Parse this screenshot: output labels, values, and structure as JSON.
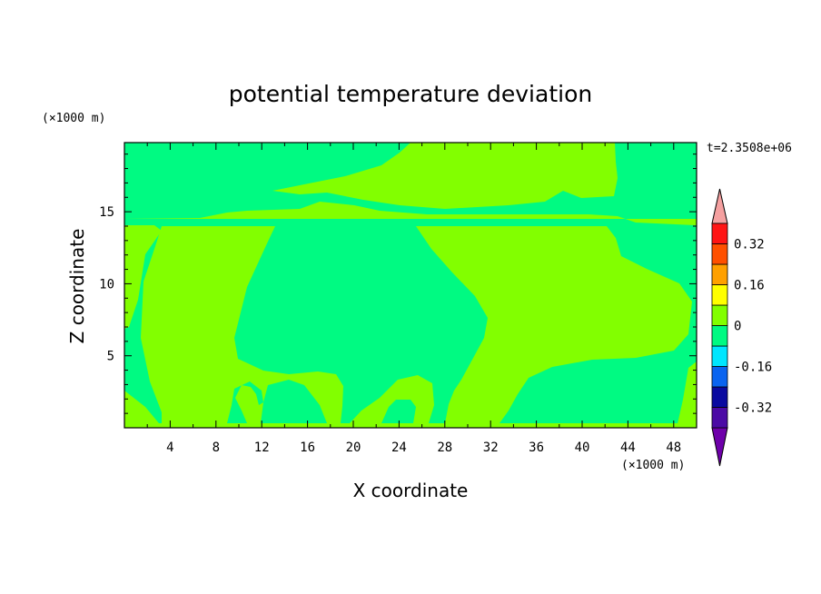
{
  "chart_data": {
    "type": "heatmap",
    "title": "potential temperature deviation",
    "xlabel": "X coordinate",
    "ylabel": "Z coordinate",
    "x_unit": "(×1000 m)",
    "y_unit": "(×1000 m)",
    "time_label": "t=2.3508e+06",
    "xlim": [
      0,
      50
    ],
    "ylim": [
      0,
      19.8
    ],
    "x_ticks": [
      "4",
      "8",
      "12",
      "16",
      "20",
      "24",
      "28",
      "32",
      "36",
      "40",
      "44",
      "48"
    ],
    "x_tick_values": [
      4,
      8,
      12,
      16,
      20,
      24,
      28,
      32,
      36,
      40,
      44,
      48
    ],
    "y_ticks": [
      "5",
      "10",
      "15"
    ],
    "y_tick_values": [
      5,
      10,
      15
    ],
    "colorbar": {
      "levels": [
        -0.4,
        -0.32,
        -0.24,
        -0.16,
        -0.08,
        0,
        0.08,
        0.16,
        0.24,
        0.32,
        0.4
      ],
      "colors": [
        "#4b0aa5",
        "#0a0aa0",
        "#0a64f0",
        "#00e6ff",
        "#00fa82",
        "#82ff00",
        "#ffff00",
        "#ffa000",
        "#ff5000",
        "#ff1414"
      ],
      "under_color": "#6e00aa",
      "over_color": "#f5a0a0",
      "labels": [
        "0.32",
        "0.16",
        "0",
        "-0.16",
        "-0.32"
      ],
      "label_values": [
        0.32,
        0.16,
        0,
        -0.16,
        -0.32
      ]
    },
    "field_colors": {
      "low": "#00fa82",
      "high": "#82ff00"
    }
  }
}
